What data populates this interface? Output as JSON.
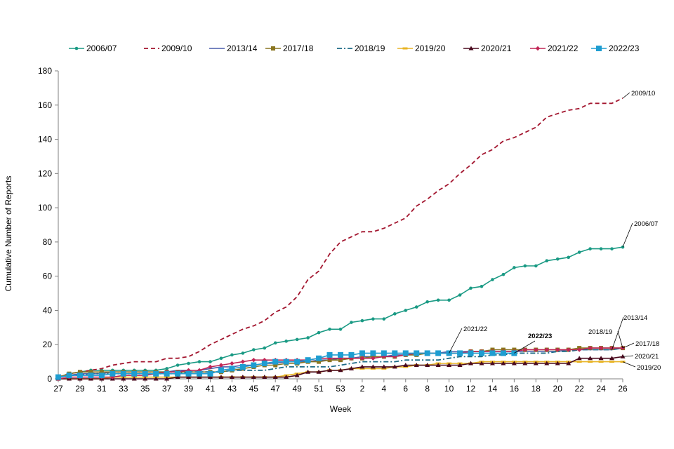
{
  "chart_data": {
    "type": "line",
    "title": "",
    "xlabel": "Week",
    "ylabel": "Cumulative Number of Reports",
    "ylim": [
      0,
      180
    ],
    "yticks": [
      0,
      20,
      40,
      60,
      80,
      100,
      120,
      140,
      160,
      180
    ],
    "grid": false,
    "legend_position": "top",
    "x": [
      27,
      28,
      29,
      30,
      31,
      32,
      33,
      34,
      35,
      36,
      37,
      38,
      39,
      40,
      41,
      42,
      43,
      44,
      45,
      46,
      47,
      48,
      49,
      50,
      51,
      52,
      53,
      1,
      2,
      3,
      4,
      5,
      6,
      7,
      8,
      9,
      10,
      11,
      12,
      13,
      14,
      15,
      16,
      17,
      18,
      19,
      20,
      21,
      22,
      23,
      24,
      25,
      26
    ],
    "xtick_labels": [
      "27",
      "29",
      "31",
      "33",
      "35",
      "37",
      "39",
      "41",
      "43",
      "45",
      "47",
      "49",
      "51",
      "53",
      "2",
      "4",
      "6",
      "8",
      "10",
      "12",
      "14",
      "16",
      "18",
      "20",
      "22",
      "24",
      "26"
    ],
    "series": [
      {
        "name": "2006/07",
        "color": "#1a9a84",
        "style": "solid",
        "marker": "dot",
        "end_label": "2006/07",
        "values": [
          1,
          3,
          4,
          5,
          5,
          5,
          5,
          5,
          5,
          5,
          6,
          8,
          9,
          10,
          10,
          12,
          14,
          15,
          17,
          18,
          21,
          22,
          23,
          24,
          27,
          29,
          29,
          33,
          34,
          35,
          35,
          38,
          40,
          42,
          45,
          46,
          46,
          49,
          53,
          54,
          58,
          61,
          65,
          66,
          66,
          69,
          70,
          71,
          74,
          76,
          76,
          76,
          77
        ]
      },
      {
        "name": "2009/10",
        "color": "#a3162f",
        "style": "dashed",
        "marker": "none",
        "end_label": "2009/10",
        "values": [
          1,
          3,
          4,
          5,
          6,
          8,
          9,
          10,
          10,
          10,
          12,
          12,
          13,
          16,
          20,
          23,
          26,
          29,
          31,
          34,
          39,
          42,
          48,
          58,
          63,
          73,
          80,
          83,
          86,
          86,
          88,
          91,
          94,
          101,
          105,
          110,
          114,
          120,
          125,
          131,
          134,
          139,
          141,
          144,
          147,
          153,
          155,
          157,
          158,
          161,
          161,
          161,
          164
        ]
      },
      {
        "name": "2013/14",
        "color": "#4a5dab",
        "style": "solid",
        "marker": "none",
        "end_label": "2013/14",
        "values": [
          1,
          2,
          3,
          3,
          3,
          4,
          4,
          4,
          4,
          4,
          4,
          5,
          5,
          5,
          6,
          7,
          7,
          8,
          8,
          9,
          9,
          10,
          10,
          10,
          11,
          11,
          12,
          12,
          13,
          13,
          13,
          14,
          14,
          15,
          15,
          15,
          16,
          16,
          16,
          16,
          16,
          16,
          16,
          16,
          16,
          16,
          16,
          17,
          17,
          17,
          17,
          17,
          18
        ]
      },
      {
        "name": "2017/18",
        "color": "#8a7520",
        "style": "solid",
        "marker": "square",
        "end_label": "2017/18",
        "values": [
          1,
          3,
          4,
          4,
          4,
          4,
          4,
          4,
          4,
          4,
          4,
          4,
          4,
          4,
          4,
          4,
          5,
          6,
          7,
          8,
          8,
          9,
          9,
          10,
          10,
          11,
          11,
          12,
          12,
          13,
          13,
          13,
          14,
          14,
          15,
          15,
          15,
          15,
          16,
          16,
          17,
          17,
          17,
          17,
          17,
          17,
          17,
          17,
          18,
          18,
          18,
          18,
          18
        ]
      },
      {
        "name": "2018/19",
        "color": "#1d6b86",
        "style": "dashdot",
        "marker": "none",
        "end_label": "2018/19",
        "values": [
          1,
          2,
          2,
          3,
          3,
          3,
          3,
          3,
          3,
          3,
          3,
          3,
          4,
          4,
          4,
          4,
          5,
          5,
          5,
          5,
          6,
          7,
          7,
          7,
          7,
          7,
          8,
          9,
          10,
          10,
          10,
          10,
          11,
          11,
          11,
          11,
          12,
          13,
          13,
          13,
          14,
          14,
          15,
          15,
          15,
          15,
          16,
          16,
          17,
          17,
          17,
          17,
          18
        ]
      },
      {
        "name": "2019/20",
        "color": "#e8b425",
        "style": "solid",
        "marker": "dash",
        "end_label": "2019/20",
        "values": [
          0,
          0,
          0,
          0,
          0,
          1,
          1,
          1,
          1,
          1,
          1,
          1,
          1,
          1,
          1,
          1,
          1,
          1,
          1,
          1,
          1,
          2,
          3,
          4,
          4,
          5,
          5,
          6,
          6,
          6,
          6,
          7,
          7,
          8,
          8,
          9,
          9,
          9,
          9,
          10,
          10,
          10,
          10,
          10,
          10,
          10,
          10,
          10,
          10,
          10,
          10,
          10,
          10
        ]
      },
      {
        "name": "2020/21",
        "color": "#4a0a1e",
        "style": "solid",
        "marker": "triangle",
        "end_label": "2020/21",
        "values": [
          0,
          0,
          0,
          0,
          0,
          0,
          0,
          0,
          0,
          0,
          0,
          1,
          1,
          1,
          1,
          1,
          1,
          1,
          1,
          1,
          1,
          1,
          2,
          4,
          4,
          5,
          5,
          6,
          7,
          7,
          7,
          7,
          8,
          8,
          8,
          8,
          8,
          8,
          9,
          9,
          9,
          9,
          9,
          9,
          9,
          9,
          9,
          9,
          12,
          12,
          12,
          12,
          13
        ]
      },
      {
        "name": "2021/22",
        "color": "#c12656",
        "style": "solid",
        "marker": "diamond",
        "end_label": "2021/22",
        "values": [
          0,
          1,
          1,
          1,
          1,
          1,
          2,
          2,
          2,
          3,
          4,
          4,
          5,
          5,
          7,
          8,
          9,
          10,
          11,
          11,
          11,
          11,
          11,
          11,
          12,
          12,
          12,
          12,
          12,
          12,
          13,
          13,
          14,
          15,
          15,
          15,
          15,
          15,
          16,
          16,
          16,
          16,
          16,
          17,
          17,
          17,
          17,
          17,
          17,
          18,
          18,
          18,
          18
        ]
      },
      {
        "name": "2022/23",
        "color": "#1e9dd1",
        "style": "solid",
        "marker": "bigsquare",
        "end_label": "2022/23",
        "values": [
          1,
          2,
          2,
          2,
          2,
          3,
          3,
          3,
          3,
          3,
          3,
          3,
          3,
          3,
          3,
          5,
          6,
          7,
          8,
          9,
          10,
          10,
          10,
          11,
          12,
          14,
          14,
          14,
          15,
          15,
          15,
          15,
          15,
          15,
          15,
          15,
          15,
          15,
          15,
          15,
          15,
          15,
          15,
          null,
          null,
          null,
          null,
          null,
          null,
          null,
          null,
          null,
          null
        ]
      }
    ]
  }
}
